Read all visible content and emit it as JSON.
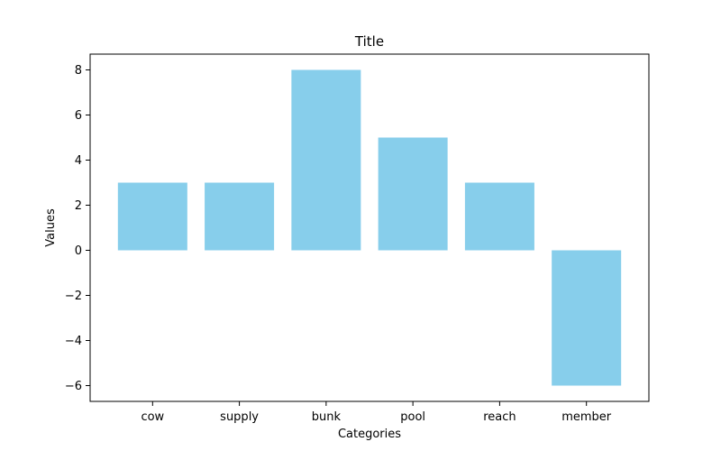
{
  "chart_data": {
    "type": "bar",
    "title": "Title",
    "xlabel": "Categories",
    "ylabel": "Values",
    "categories": [
      "cow",
      "supply",
      "bunk",
      "pool",
      "reach",
      "member"
    ],
    "values": [
      3,
      3,
      8,
      5,
      3,
      -6
    ],
    "ylim": [
      -6.7,
      8.7
    ],
    "yticks": [
      -6,
      -4,
      -2,
      0,
      2,
      4,
      6,
      8
    ],
    "ytick_labels": [
      "−6",
      "−4",
      "−2",
      "0",
      "2",
      "4",
      "6",
      "8"
    ],
    "bar_color": "#87CEEB",
    "grid": false,
    "legend": "none"
  }
}
